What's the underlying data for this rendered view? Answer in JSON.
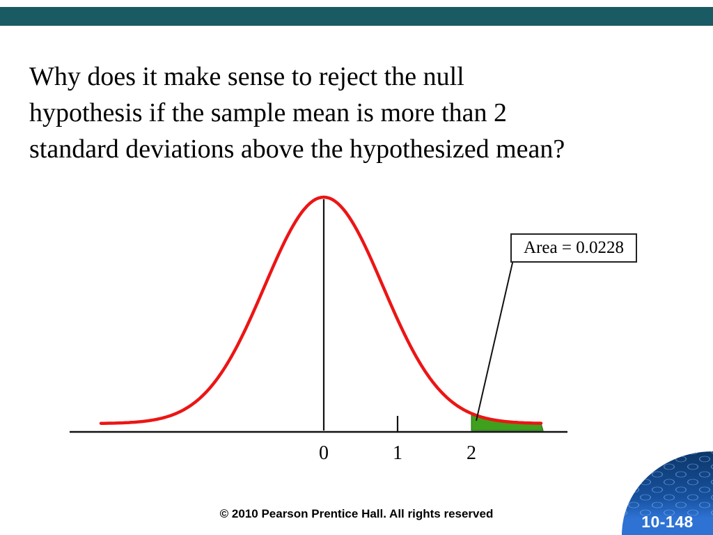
{
  "slide": {
    "title_lines": [
      "Why does it make sense to reject the null",
      "hypothesis if the sample mean is more than 2",
      "standard deviations above the hypothesized mean?"
    ],
    "footer": "© 2010 Pearson Prentice Hall. All rights reserved",
    "slide_number": "10-148"
  },
  "colors": {
    "top_bar": "#1a5a63",
    "curve": "#ec1515",
    "shade": "#3fa01e",
    "shade_edge": "#1e6a10",
    "badge_blue": "#2e72d4",
    "axis": "#111111"
  },
  "chart_data": {
    "type": "area",
    "title": "",
    "distribution": "normal",
    "mean": 0,
    "sd": 1,
    "x_ticks": [
      0,
      1,
      2
    ],
    "xlabel": "",
    "ylabel": "",
    "shade_from_z": 2,
    "shaded_tail_area": 0.0228,
    "annotation": "Area = 0.0228",
    "legend": "none",
    "grid": "off"
  }
}
